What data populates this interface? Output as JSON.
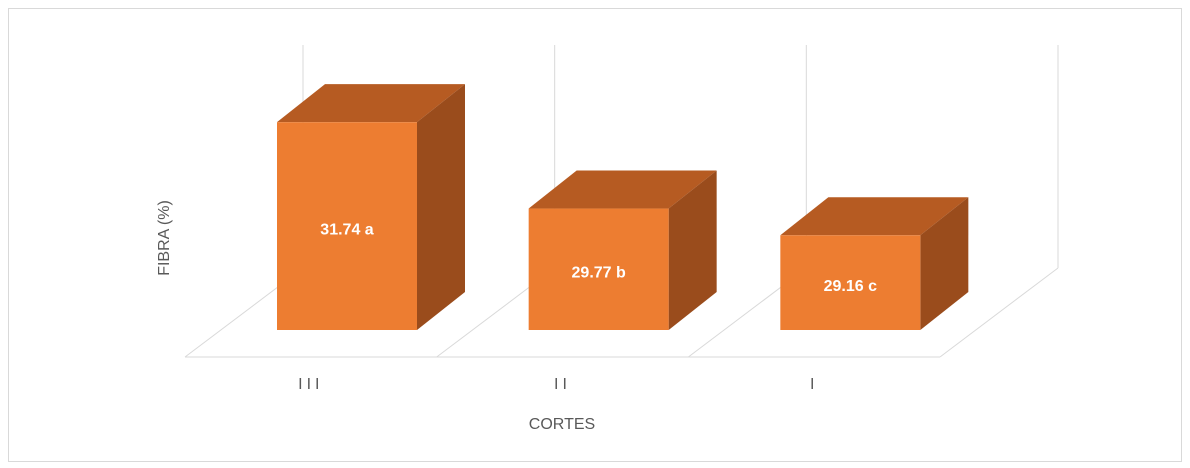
{
  "chart_data": {
    "type": "bar3d",
    "categories": [
      "III",
      "II",
      "I"
    ],
    "values": [
      31.74,
      29.77,
      29.16
    ],
    "value_labels": [
      "31.74 a",
      "29.77 b",
      "29.16 c"
    ],
    "xlabel": "CORTES",
    "ylabel": "FIBRA (%)",
    "ylim": [
      27,
      33.5
    ],
    "color": "#ed7d31",
    "grid": true
  }
}
